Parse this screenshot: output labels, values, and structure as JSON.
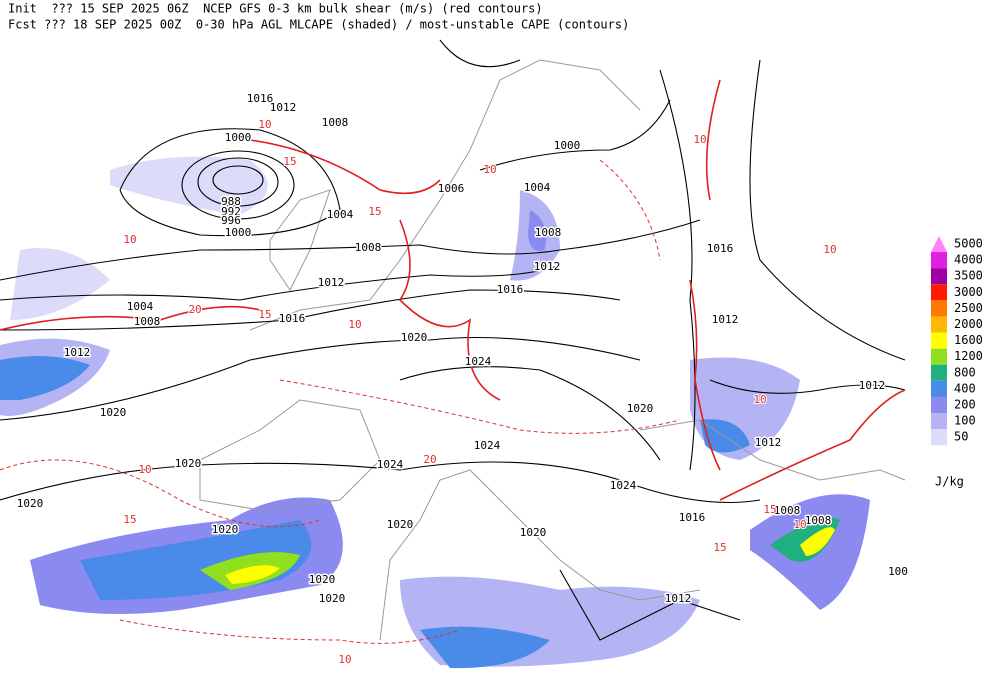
{
  "header": {
    "line1": "Init  ??? 15 SEP 2025 06Z  NCEP GFS 0-3 km bulk shear (m/s) (red contours)",
    "line2": "Fcst ??? 18 SEP 2025 00Z  0-30 hPa AGL MLCAPE (shaded) / most-unstable CAPE (contours)"
  },
  "isobar_labels": [
    "1016",
    "1012",
    "1008",
    "1000",
    "988",
    "992",
    "996",
    "1000",
    "1004",
    "1008",
    "1012",
    "1016",
    "1020",
    "1024",
    "1000",
    "1004",
    "1006",
    "1008",
    "1012",
    "1016",
    "1016",
    "1012",
    "1012",
    "1012",
    "1020",
    "1024",
    "1024",
    "1024",
    "1020",
    "1020",
    "1020",
    "1020",
    "1020",
    "1020",
    "1020",
    "1020",
    "1016",
    "1012",
    "1008",
    "1008",
    "1004",
    "1008",
    "1012",
    "100"
  ],
  "shear_labels": [
    "10",
    "15",
    "10",
    "15",
    "20",
    "15",
    "10",
    "15",
    "10",
    "10",
    "20",
    "10",
    "15",
    "10",
    "15",
    "10",
    "10",
    "10"
  ],
  "legend": {
    "levels": [
      {
        "label": "5000",
        "color": "#ff80ff"
      },
      {
        "label": "4000",
        "color": "#e020e0"
      },
      {
        "label": "3500",
        "color": "#a000a0"
      },
      {
        "label": "3000",
        "color": "#ff1a00"
      },
      {
        "label": "2500",
        "color": "#ff7a00"
      },
      {
        "label": "2000",
        "color": "#ffb800"
      },
      {
        "label": "1600",
        "color": "#ffff00"
      },
      {
        "label": "1200",
        "color": "#90e020"
      },
      {
        "label": "800",
        "color": "#20b080"
      },
      {
        "label": "400",
        "color": "#4a8ae8"
      },
      {
        "label": "200",
        "color": "#8a8af0"
      },
      {
        "label": "100",
        "color": "#b4b4f4"
      },
      {
        "label": "50",
        "color": "#dcdcfa"
      }
    ],
    "unit": "J/kg"
  }
}
